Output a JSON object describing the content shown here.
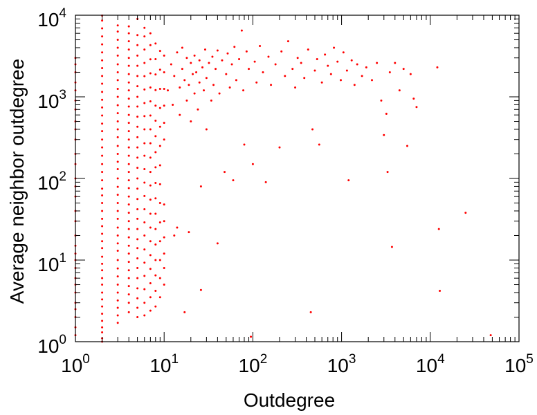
{
  "chart_data": {
    "type": "scatter",
    "title": "",
    "xlabel": "Outdegree",
    "ylabel": "Average neighbor outdegree",
    "x_scale": "log",
    "y_scale": "log",
    "xlim": [
      1,
      100000
    ],
    "ylim": [
      1,
      10000
    ],
    "grid": false,
    "legend": "none",
    "marker_color": "#ff0000",
    "x_ticks": [
      {
        "base": "10",
        "exp": "0"
      },
      {
        "base": "10",
        "exp": "1"
      },
      {
        "base": "10",
        "exp": "2"
      },
      {
        "base": "10",
        "exp": "3"
      },
      {
        "base": "10",
        "exp": "4"
      },
      {
        "base": "10",
        "exp": "5"
      }
    ],
    "y_ticks": [
      {
        "base": "10",
        "exp": "0"
      },
      {
        "base": "10",
        "exp": "1"
      },
      {
        "base": "10",
        "exp": "2"
      },
      {
        "base": "10",
        "exp": "3"
      },
      {
        "base": "10",
        "exp": "4"
      }
    ],
    "columns": [
      {
        "x": 1,
        "y": [
          1.2,
          1.5,
          2,
          2.5,
          3,
          4,
          5,
          6,
          8,
          10,
          12,
          15,
          20,
          30,
          40,
          60,
          80,
          100,
          150,
          200,
          300,
          400,
          500,
          700,
          900,
          1200,
          1500,
          2000,
          2500,
          3000
        ]
      },
      {
        "x": 2,
        "y": [
          1.0,
          1.1,
          1.3,
          1.5,
          1.8,
          2.2,
          2.7,
          3.3,
          4,
          5,
          6,
          7.5,
          9,
          11,
          14,
          17,
          21,
          26,
          32,
          40,
          50,
          62,
          75,
          95,
          120,
          150,
          190,
          240,
          300,
          380,
          470,
          590,
          740,
          920,
          1150,
          1450,
          1800,
          2250,
          2800,
          3500,
          4400,
          5500,
          6900,
          8600,
          9900
        ]
      },
      {
        "x": 3,
        "y": [
          1.7,
          2.1,
          2.6,
          3.2,
          4,
          5,
          6.3,
          7.9,
          10,
          13,
          16,
          20,
          25,
          32,
          40,
          50,
          63,
          79,
          100,
          130,
          160,
          200,
          250,
          320,
          400,
          500,
          630,
          790,
          1000,
          1250,
          1600,
          2000,
          2500,
          3200,
          4000,
          5000,
          6300,
          7500
        ]
      },
      {
        "x": 4,
        "y": [
          2.3,
          3,
          3.8,
          4.8,
          6,
          7.5,
          9.5,
          12,
          15,
          19,
          24,
          30,
          38,
          48,
          60,
          76,
          95,
          120,
          150,
          190,
          240,
          300,
          380,
          480,
          600,
          760,
          950,
          1200,
          1500,
          1900,
          2400,
          3000,
          3800,
          4800,
          6000,
          7300
        ]
      },
      {
        "x": 5,
        "y": [
          2,
          2.6,
          3.4,
          4.5,
          6,
          8,
          10.5,
          14,
          18,
          24,
          32,
          42,
          56,
          75,
          100,
          135,
          180,
          240,
          320,
          430,
          570,
          760,
          1000,
          1350,
          1800,
          2400,
          3200,
          4300,
          5700,
          9000
        ]
      },
      {
        "x": 6,
        "y": [
          2.1,
          3,
          4.4,
          6.4,
          9.3,
          13.5,
          20,
          29,
          42,
          61,
          89,
          130,
          190,
          270,
          400,
          580,
          840,
          1230,
          1790,
          2600,
          3800,
          5500,
          7000
        ]
      },
      {
        "x": 7,
        "y": [
          2.4,
          3.5,
          5.2,
          7.8,
          11.5,
          17,
          25,
          37,
          55,
          82,
          120,
          180,
          270,
          400,
          590,
          880,
          1300,
          1940,
          2880,
          4300,
          6000
        ]
      },
      {
        "x": 8,
        "y": [
          2.7,
          4.2,
          6.5,
          10,
          15.5,
          24,
          37,
          57,
          88,
          137,
          210,
          330,
          510,
          780,
          1210,
          1880,
          2900,
          4500
        ]
      },
      {
        "x": 9,
        "y": [
          3.5,
          6,
          10,
          17,
          29,
          50,
          85,
          145,
          250,
          430,
          730,
          1250,
          2150,
          3650
        ]
      },
      {
        "x": 10,
        "y": [
          5,
          8,
          12,
          19,
          30,
          48,
          300,
          480,
          780,
          1250,
          2000,
          3200
        ]
      }
    ],
    "points": [
      {
        "x": 11,
        "y": 1200
      },
      {
        "x": 12,
        "y": 2500
      },
      {
        "x": 12.5,
        "y": 800
      },
      {
        "x": 13,
        "y": 20
      },
      {
        "x": 13,
        "y": 1800
      },
      {
        "x": 14,
        "y": 3500
      },
      {
        "x": 14,
        "y": 25
      },
      {
        "x": 15,
        "y": 1300
      },
      {
        "x": 15,
        "y": 600
      },
      {
        "x": 16,
        "y": 4000
      },
      {
        "x": 16,
        "y": 2200
      },
      {
        "x": 17,
        "y": 1600
      },
      {
        "x": 17,
        "y": 2.3
      },
      {
        "x": 18,
        "y": 900
      },
      {
        "x": 18,
        "y": 3000
      },
      {
        "x": 19,
        "y": 1400
      },
      {
        "x": 19,
        "y": 22
      },
      {
        "x": 20,
        "y": 2600
      },
      {
        "x": 20,
        "y": 500
      },
      {
        "x": 21,
        "y": 1900
      },
      {
        "x": 22,
        "y": 3200
      },
      {
        "x": 22,
        "y": 1100
      },
      {
        "x": 23,
        "y": 2000
      },
      {
        "x": 24,
        "y": 700
      },
      {
        "x": 25,
        "y": 2800
      },
      {
        "x": 25,
        "y": 1500
      },
      {
        "x": 26,
        "y": 80
      },
      {
        "x": 26,
        "y": 4.3
      },
      {
        "x": 27,
        "y": 2300
      },
      {
        "x": 28,
        "y": 1200
      },
      {
        "x": 29,
        "y": 3800
      },
      {
        "x": 30,
        "y": 1700
      },
      {
        "x": 30,
        "y": 400
      },
      {
        "x": 32,
        "y": 2600
      },
      {
        "x": 34,
        "y": 900
      },
      {
        "x": 35,
        "y": 3100
      },
      {
        "x": 36,
        "y": 1400
      },
      {
        "x": 38,
        "y": 2200
      },
      {
        "x": 40,
        "y": 16
      },
      {
        "x": 40,
        "y": 3700
      },
      {
        "x": 42,
        "y": 1100
      },
      {
        "x": 45,
        "y": 2800
      },
      {
        "x": 48,
        "y": 120
      },
      {
        "x": 50,
        "y": 1900
      },
      {
        "x": 52,
        "y": 3400
      },
      {
        "x": 55,
        "y": 1300
      },
      {
        "x": 58,
        "y": 2500
      },
      {
        "x": 60,
        "y": 95
      },
      {
        "x": 62,
        "y": 4100
      },
      {
        "x": 65,
        "y": 1600
      },
      {
        "x": 70,
        "y": 2900
      },
      {
        "x": 75,
        "y": 6500
      },
      {
        "x": 78,
        "y": 1200
      },
      {
        "x": 80,
        "y": 260
      },
      {
        "x": 85,
        "y": 3600
      },
      {
        "x": 90,
        "y": 2200
      },
      {
        "x": 95,
        "y": 1.15
      },
      {
        "x": 100,
        "y": 150
      },
      {
        "x": 105,
        "y": 2700
      },
      {
        "x": 110,
        "y": 1500
      },
      {
        "x": 120,
        "y": 4200
      },
      {
        "x": 130,
        "y": 2000
      },
      {
        "x": 140,
        "y": 90
      },
      {
        "x": 150,
        "y": 3100
      },
      {
        "x": 160,
        "y": 1400
      },
      {
        "x": 180,
        "y": 2500
      },
      {
        "x": 200,
        "y": 240
      },
      {
        "x": 210,
        "y": 3600
      },
      {
        "x": 230,
        "y": 1800
      },
      {
        "x": 250,
        "y": 4800
      },
      {
        "x": 280,
        "y": 2200
      },
      {
        "x": 300,
        "y": 1300
      },
      {
        "x": 320,
        "y": 3000
      },
      {
        "x": 350,
        "y": 2600
      },
      {
        "x": 380,
        "y": 1700
      },
      {
        "x": 420,
        "y": 3800
      },
      {
        "x": 450,
        "y": 2.3
      },
      {
        "x": 470,
        "y": 400
      },
      {
        "x": 500,
        "y": 2100
      },
      {
        "x": 530,
        "y": 2900
      },
      {
        "x": 560,
        "y": 260
      },
      {
        "x": 600,
        "y": 1500
      },
      {
        "x": 650,
        "y": 3300
      },
      {
        "x": 700,
        "y": 2400
      },
      {
        "x": 760,
        "y": 1900
      },
      {
        "x": 820,
        "y": 4000
      },
      {
        "x": 900,
        "y": 2700
      },
      {
        "x": 980,
        "y": 1600
      },
      {
        "x": 1050,
        "y": 3500
      },
      {
        "x": 1150,
        "y": 2100
      },
      {
        "x": 1200,
        "y": 95
      },
      {
        "x": 1300,
        "y": 2800
      },
      {
        "x": 1400,
        "y": 1400
      },
      {
        "x": 1500,
        "y": 2500
      },
      {
        "x": 1700,
        "y": 1800
      },
      {
        "x": 1900,
        "y": 2300
      },
      {
        "x": 2200,
        "y": 1600
      },
      {
        "x": 2500,
        "y": 2600
      },
      {
        "x": 2800,
        "y": 900
      },
      {
        "x": 3000,
        "y": 340
      },
      {
        "x": 3200,
        "y": 620
      },
      {
        "x": 3300,
        "y": 120
      },
      {
        "x": 3500,
        "y": 2000
      },
      {
        "x": 3700,
        "y": 14.5
      },
      {
        "x": 4000,
        "y": 2600
      },
      {
        "x": 4500,
        "y": 1200
      },
      {
        "x": 5000,
        "y": 2200
      },
      {
        "x": 5500,
        "y": 250
      },
      {
        "x": 6000,
        "y": 1900
      },
      {
        "x": 6500,
        "y": 950
      },
      {
        "x": 7000,
        "y": 750
      },
      {
        "x": 12000,
        "y": 2300
      },
      {
        "x": 12500,
        "y": 24
      },
      {
        "x": 12800,
        "y": 4.2
      },
      {
        "x": 25000,
        "y": 38
      },
      {
        "x": 48000,
        "y": 1.2
      }
    ]
  }
}
